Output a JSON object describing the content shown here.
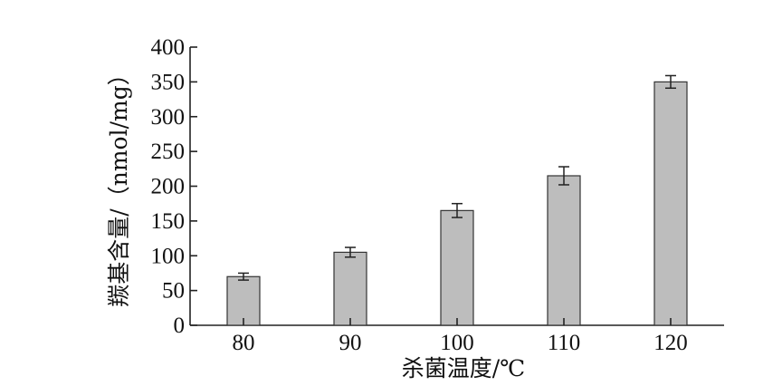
{
  "chart_data": {
    "type": "bar",
    "categories": [
      "80",
      "90",
      "100",
      "110",
      "120"
    ],
    "values": [
      70,
      105,
      165,
      215,
      350
    ],
    "error": [
      5,
      7,
      10,
      13,
      9
    ],
    "xlabel": "杀菌温度/℃",
    "ylabel": "羰基含量/（nmol/mg）",
    "ylim": [
      0,
      400
    ],
    "yticks": [
      0,
      50,
      100,
      150,
      200,
      250,
      300,
      350,
      400
    ],
    "bar_color": "#bdbdbd",
    "grid": false,
    "legend": "none"
  }
}
